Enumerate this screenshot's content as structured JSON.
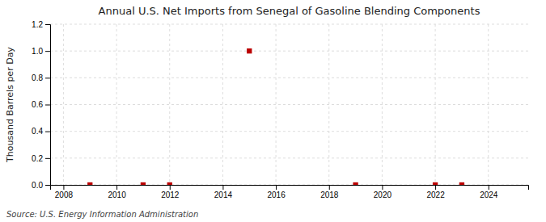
{
  "chart_data": {
    "type": "scatter",
    "title": "Annual U.S. Net Imports from Senegal of Gasoline Blending Components",
    "ylabel": "Thousand Barrels per Day",
    "source": "Source: U.S. Energy Information Administration",
    "x": [
      2009,
      2011,
      2012,
      2015,
      2019,
      2022,
      2023
    ],
    "values": [
      0.0,
      0.0,
      0.0,
      1.0,
      0.0,
      0.0,
      0.0
    ],
    "color": "#BB0000",
    "marker": "square",
    "xlim": [
      2007.5,
      2025.5
    ],
    "xticks": [
      2008,
      2010,
      2012,
      2014,
      2016,
      2018,
      2020,
      2022,
      2024
    ],
    "ylim": [
      0.0,
      1.2
    ],
    "yticks": [
      {
        "value": 0.0,
        "label": "0.0"
      },
      0.2,
      0.4,
      0.6,
      0.8,
      {
        "value": 1.0,
        "label": "1.0"
      },
      1.2
    ],
    "grid": true
  }
}
